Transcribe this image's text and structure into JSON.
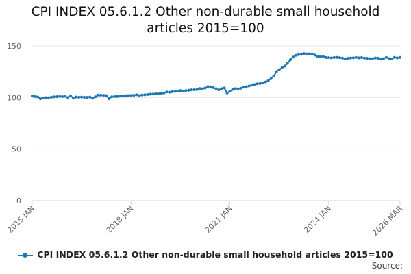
{
  "title": "CPI INDEX 05.6.1.2 Other non-durable small household articles 2015=100",
  "source_label": "Source:",
  "colors": {
    "series": "#1f77b4",
    "grid": "#e6e6e6",
    "axis": "#ccd6eb",
    "text": "#666666"
  },
  "chart_data": {
    "type": "line",
    "title": "CPI INDEX 05.6.1.2 Other non-durable small household articles 2015=100",
    "xlabel": "",
    "ylabel": "",
    "ylim": [
      0,
      150
    ],
    "yticks": [
      0,
      50,
      100,
      150
    ],
    "grid": true,
    "legend": "bottom",
    "x_start": "2015 JAN",
    "x_end": "2026 MAR",
    "xticks": [
      {
        "label": "2015 JAN",
        "index": 0
      },
      {
        "label": "2018 JAN",
        "index": 36
      },
      {
        "label": "2021 JAN",
        "index": 72
      },
      {
        "label": "2024 JAN",
        "index": 108
      },
      {
        "label": "2026 MAR",
        "index": 134
      }
    ],
    "series": [
      {
        "name": "CPI INDEX 05.6.1.2 Other non-durable small household articles 2015=100",
        "values": [
          101.5,
          101.0,
          100.6,
          98.8,
          99.6,
          99.9,
          99.8,
          100.4,
          100.6,
          100.8,
          101.1,
          100.9,
          101.3,
          99.9,
          101.7,
          99.5,
          100.5,
          100.3,
          100.5,
          100.2,
          100.1,
          100.5,
          99.3,
          100.7,
          102.4,
          102.3,
          102.1,
          101.8,
          98.8,
          100.7,
          101.0,
          101.0,
          101.6,
          101.4,
          101.8,
          101.9,
          102.0,
          102.1,
          102.6,
          101.9,
          102.4,
          102.6,
          102.9,
          103.2,
          103.3,
          103.7,
          103.6,
          103.8,
          104.4,
          105.4,
          105.1,
          105.5,
          105.9,
          106.1,
          106.7,
          106.2,
          106.7,
          107.0,
          107.4,
          107.5,
          107.7,
          108.8,
          108.4,
          109.2,
          110.6,
          110.3,
          109.6,
          108.5,
          107.4,
          108.6,
          109.3,
          104.3,
          106.1,
          107.8,
          108.6,
          108.5,
          109.0,
          110.0,
          110.4,
          111.2,
          112.0,
          112.6,
          113.3,
          113.6,
          114.3,
          115.1,
          116.3,
          118.4,
          120.8,
          125.1,
          127.0,
          128.9,
          130.4,
          133.1,
          136.5,
          139.1,
          140.9,
          141.5,
          141.8,
          142.5,
          142.2,
          142.4,
          142.2,
          141.1,
          139.8,
          139.6,
          139.8,
          138.8,
          138.6,
          138.4,
          138.8,
          138.9,
          138.6,
          138.2,
          137.5,
          138.0,
          138.3,
          138.5,
          138.8,
          138.4,
          138.7,
          138.2,
          138.0,
          137.6,
          137.6,
          138.3,
          138.1,
          137.2,
          137.7,
          138.9,
          137.7,
          137.4,
          138.9,
          138.4,
          138.9
        ]
      }
    ]
  }
}
